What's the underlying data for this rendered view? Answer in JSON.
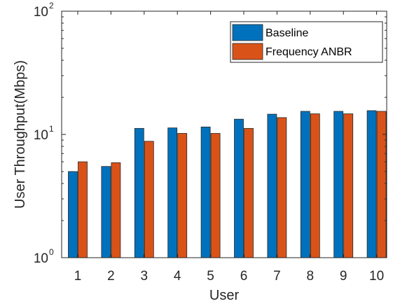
{
  "chart_data": {
    "type": "bar",
    "title": "",
    "xlabel": "User",
    "ylabel": "User Throughput(Mbps)",
    "yscale": "log",
    "ylim": [
      1,
      100
    ],
    "categories": [
      "1",
      "2",
      "3",
      "4",
      "5",
      "6",
      "7",
      "8",
      "9",
      "10"
    ],
    "series": [
      {
        "name": "Baseline",
        "color": "#0072BD",
        "values": [
          5.0,
          5.5,
          11.2,
          11.3,
          11.5,
          13.3,
          14.6,
          15.4,
          15.4,
          15.6
        ]
      },
      {
        "name": "Frequency ANBR",
        "color": "#D95319",
        "values": [
          6.0,
          5.9,
          8.8,
          10.2,
          10.2,
          11.2,
          13.7,
          14.7,
          14.7,
          15.4
        ]
      }
    ],
    "y_ticks": [
      {
        "base": "10",
        "exp": "0",
        "value": 1
      },
      {
        "base": "10",
        "exp": "1",
        "value": 10
      },
      {
        "base": "10",
        "exp": "2",
        "value": 100
      }
    ],
    "legend_position": "top-right",
    "grid": false
  }
}
